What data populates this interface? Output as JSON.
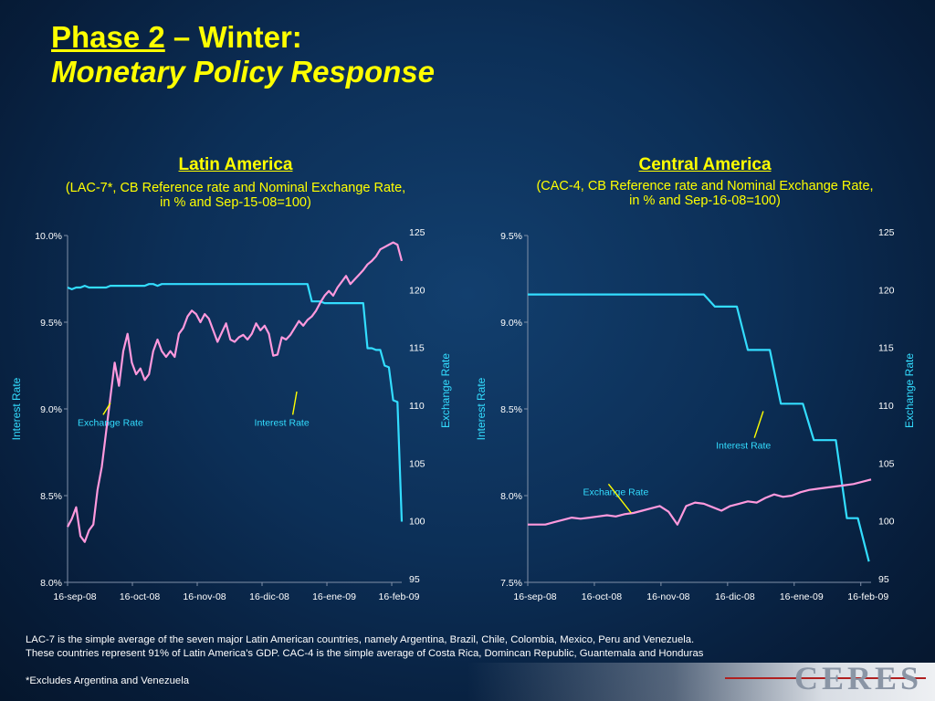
{
  "slide": {
    "title_line1_u": "Phase 2",
    "title_line1_rest": " – Winter:",
    "title_line2": "Monetary Policy Response",
    "note_line1": "LAC-7 is the simple average of the seven major Latin American countries, namely Argentina, Brazil, Chile, Colombia, Mexico, Peru and Venezuela.",
    "note_line2": "These countries represent 91% of Latin America’s GDP. CAC-4 is the simple average of Costa Rica, Domincan Republic, Guantemala and Honduras",
    "footnote": "*Excludes Argentina and Venezuela",
    "logo_text": "CERES"
  },
  "panels": [
    {
      "title": "Latin America",
      "subtitle1": "(LAC-7*, CB Reference rate and Nominal Exchange Rate,",
      "subtitle2": "in % and Sep-15-08=100)"
    },
    {
      "title": "Central America",
      "subtitle1": "(CAC-4, CB Reference rate and Nominal Exchange Rate,",
      "subtitle2": "in % and Sep-16-08=100)"
    }
  ],
  "colors": {
    "interest": "#33ddff",
    "exchange": "#ff99dd",
    "title": "#ffff00",
    "axis": "#8090a8"
  },
  "chart_data": [
    {
      "type": "line",
      "title": "Latin America",
      "ylabel_left": "Interest Rate",
      "ylabel_right": "Exchange Rate",
      "x_ticks": [
        "16-sep-08",
        "16-oct-08",
        "16-nov-08",
        "16-dic-08",
        "16-ene-09",
        "16-feb-09"
      ],
      "x_range": [
        0,
        156
      ],
      "y_left_range": [
        8.0,
        10.0
      ],
      "y_left_ticks": [
        "8.0%",
        "8.5%",
        "9.0%",
        "9.5%",
        "10.0%"
      ],
      "y_right_range": [
        95,
        125
      ],
      "y_right_ticks": [
        "95",
        "100",
        "105",
        "110",
        "115",
        "120",
        "125"
      ],
      "annotations": [
        {
          "text": "Exchange Rate",
          "x": 20,
          "y": 109.5,
          "target_x": 20,
          "target_y": 110.5,
          "axis": "right"
        },
        {
          "text": "Interest Rate",
          "x": 100,
          "y": 109.5,
          "target_x": 107,
          "target_y": 111.5,
          "axis": "right"
        }
      ],
      "series": [
        {
          "name": "Interest Rate",
          "axis": "left",
          "x": [
            0,
            2,
            4,
            6,
            8,
            10,
            12,
            14,
            16,
            18,
            20,
            22,
            24,
            26,
            28,
            30,
            32,
            34,
            36,
            38,
            40,
            42,
            44,
            46,
            48,
            50,
            52,
            54,
            56,
            58,
            60,
            62,
            64,
            66,
            68,
            70,
            72,
            74,
            76,
            78,
            80,
            82,
            84,
            86,
            88,
            90,
            92,
            94,
            96,
            98,
            100,
            102,
            104,
            106,
            108,
            110,
            112,
            114,
            116,
            118,
            120,
            122,
            124,
            126,
            128,
            130,
            132,
            134,
            136,
            138,
            140,
            142,
            144,
            146,
            148,
            150,
            152,
            154,
            156
          ],
          "y": [
            9.7,
            9.69,
            9.7,
            9.7,
            9.71,
            9.7,
            9.7,
            9.7,
            9.7,
            9.7,
            9.71,
            9.71,
            9.71,
            9.71,
            9.71,
            9.71,
            9.71,
            9.71,
            9.71,
            9.72,
            9.72,
            9.71,
            9.72,
            9.72,
            9.72,
            9.72,
            9.72,
            9.72,
            9.72,
            9.72,
            9.72,
            9.72,
            9.72,
            9.72,
            9.72,
            9.72,
            9.72,
            9.72,
            9.72,
            9.72,
            9.72,
            9.72,
            9.72,
            9.72,
            9.72,
            9.72,
            9.72,
            9.72,
            9.72,
            9.72,
            9.72,
            9.72,
            9.72,
            9.72,
            9.72,
            9.72,
            9.72,
            9.62,
            9.62,
            9.62,
            9.61,
            9.61,
            9.61,
            9.61,
            9.61,
            9.61,
            9.61,
            9.61,
            9.61,
            9.61,
            9.35,
            9.35,
            9.34,
            9.34,
            9.25,
            9.24,
            9.05,
            9.04,
            8.35
          ]
        },
        {
          "name": "Exchange Rate",
          "axis": "right",
          "x": [
            0,
            2,
            4,
            6,
            8,
            10,
            12,
            14,
            16,
            18,
            20,
            22,
            24,
            26,
            28,
            30,
            32,
            34,
            36,
            38,
            40,
            42,
            44,
            46,
            48,
            50,
            52,
            54,
            56,
            58,
            60,
            62,
            64,
            66,
            68,
            70,
            72,
            74,
            76,
            78,
            80,
            82,
            84,
            86,
            88,
            90,
            92,
            94,
            96,
            98,
            100,
            102,
            104,
            106,
            108,
            110,
            112,
            114,
            116,
            118,
            120,
            122,
            124,
            126,
            128,
            130,
            132,
            134,
            136,
            138,
            140,
            142,
            144,
            146,
            148,
            150,
            152,
            154,
            156
          ],
          "y": [
            99.8,
            100.5,
            101.5,
            99,
            98.5,
            99.5,
            100,
            103,
            105,
            108,
            111,
            114,
            112,
            115,
            116.5,
            114,
            113,
            113.5,
            112.5,
            113,
            115,
            116,
            115,
            114.5,
            115,
            114.5,
            116.5,
            117,
            118,
            118.5,
            118.2,
            117.5,
            118.2,
            117.8,
            116.8,
            115.8,
            116.6,
            117.4,
            116,
            115.8,
            116.2,
            116.4,
            116,
            116.5,
            117.4,
            116.8,
            117.2,
            116.5,
            114.6,
            114.7,
            116.2,
            116,
            116.4,
            117,
            117.6,
            117.2,
            117.7,
            118,
            118.5,
            119.2,
            119.8,
            120.2,
            119.8,
            120.5,
            121,
            121.5,
            120.8,
            121.2,
            121.6,
            122,
            122.5,
            122.8,
            123.2,
            123.8,
            124,
            124.2,
            124.4,
            124.2,
            122.8
          ]
        }
      ]
    },
    {
      "type": "line",
      "title": "Central America",
      "ylabel_left": "Interest Rate",
      "ylabel_right": "Exchange Rate",
      "x_ticks": [
        "16-sep-08",
        "16-oct-08",
        "16-nov-08",
        "16-dic-08",
        "16-ene-09",
        "16-feb-09"
      ],
      "x_range": [
        0,
        156
      ],
      "y_left_range": [
        7.5,
        9.5
      ],
      "y_left_ticks": [
        "7.5%",
        "8.0%",
        "8.5%",
        "9.0%",
        "9.5%"
      ],
      "y_right_range": [
        95,
        125
      ],
      "y_right_ticks": [
        "95",
        "100",
        "105",
        "110",
        "115",
        "120",
        "125"
      ],
      "annotations": [
        {
          "text": "Interest Rate",
          "x": 98,
          "y": 107.5,
          "target_x": 107,
          "target_y": 109.8,
          "axis": "right"
        },
        {
          "text": "Exchange Rate",
          "x": 40,
          "y": 103.5,
          "target_x": 47,
          "target_y": 101,
          "axis": "right"
        }
      ],
      "series": [
        {
          "name": "Interest Rate",
          "axis": "left",
          "x": [
            0,
            10,
            20,
            30,
            40,
            50,
            60,
            70,
            75,
            80,
            85,
            90,
            95,
            100,
            105,
            110,
            115,
            120,
            125,
            130,
            135,
            140,
            145,
            150,
            155
          ],
          "y": [
            9.16,
            9.16,
            9.16,
            9.16,
            9.16,
            9.16,
            9.16,
            9.16,
            9.16,
            9.16,
            9.09,
            9.09,
            9.09,
            8.84,
            8.84,
            8.84,
            8.53,
            8.53,
            8.53,
            8.32,
            8.32,
            8.32,
            7.87,
            7.87,
            7.62
          ]
        },
        {
          "name": "Exchange Rate",
          "axis": "right",
          "x": [
            0,
            4,
            8,
            12,
            16,
            20,
            24,
            28,
            32,
            36,
            40,
            44,
            48,
            52,
            56,
            60,
            64,
            68,
            72,
            76,
            80,
            84,
            88,
            92,
            96,
            100,
            104,
            108,
            112,
            116,
            120,
            124,
            128,
            132,
            136,
            140,
            144,
            148,
            152,
            156
          ],
          "y": [
            100,
            100,
            100,
            100.2,
            100.4,
            100.6,
            100.5,
            100.6,
            100.7,
            100.8,
            100.7,
            100.9,
            101,
            101.2,
            101.4,
            101.6,
            101.1,
            100,
            101.6,
            101.9,
            101.8,
            101.5,
            101.2,
            101.6,
            101.8,
            102,
            101.9,
            102.3,
            102.6,
            102.4,
            102.5,
            102.8,
            103,
            103.1,
            103.2,
            103.3,
            103.4,
            103.5,
            103.7,
            103.9
          ]
        }
      ]
    }
  ]
}
